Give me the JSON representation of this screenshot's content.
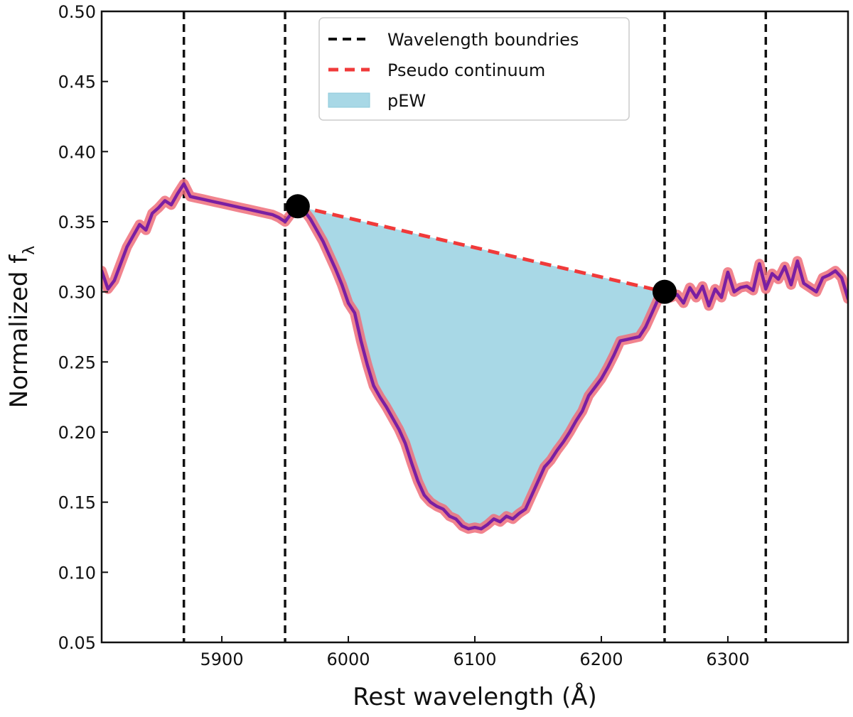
{
  "chart_data": {
    "type": "line",
    "xlabel": "Rest wavelength (Å)",
    "ylabel_main": "Normalized f",
    "ylabel_sub": "λ",
    "xlim": [
      5805,
      6395
    ],
    "ylim": [
      0.05,
      0.5
    ],
    "xticks": [
      5900,
      6000,
      6100,
      6200,
      6300
    ],
    "xtick_labels": [
      "5900",
      "6000",
      "6100",
      "6200",
      "6300"
    ],
    "yticks": [
      0.05,
      0.1,
      0.15,
      0.2,
      0.25,
      0.3,
      0.35,
      0.4,
      0.45,
      0.5
    ],
    "ytick_labels": [
      "0.05",
      "0.10",
      "0.15",
      "0.20",
      "0.25",
      "0.30",
      "0.35",
      "0.40",
      "0.45",
      "0.50"
    ],
    "grid": false,
    "legend_position": "top-center",
    "legend": [
      {
        "label": "Wavelength boundries",
        "style": "black-dashed-line"
      },
      {
        "label": "Pseudo continuum",
        "style": "red-dashed-line"
      },
      {
        "label": "pEW",
        "style": "filled-patch"
      }
    ],
    "colors": {
      "spectrum": "#7a1fa2",
      "spectrum_halo": "#ef6f7a",
      "boundary": "#111111",
      "continuum": "#f03a3a",
      "fill": "#a8d8e6",
      "endpoint": "#000000"
    },
    "boundaries_x": [
      5870,
      5950,
      6250,
      6330
    ],
    "continuum": {
      "start": {
        "x": 5960,
        "y": 0.361
      },
      "end": {
        "x": 6250,
        "y": 0.3
      }
    },
    "spectrum": {
      "x": [
        5805,
        5810,
        5815,
        5820,
        5825,
        5830,
        5835,
        5840,
        5845,
        5850,
        5855,
        5860,
        5865,
        5870,
        5875,
        5880,
        5885,
        5890,
        5895,
        5900,
        5905,
        5910,
        5915,
        5920,
        5925,
        5930,
        5935,
        5940,
        5945,
        5950,
        5955,
        5960,
        5965,
        5970,
        5975,
        5980,
        5985,
        5990,
        5995,
        6000,
        6005,
        6010,
        6015,
        6020,
        6025,
        6030,
        6035,
        6040,
        6045,
        6050,
        6055,
        6060,
        6065,
        6070,
        6075,
        6080,
        6085,
        6090,
        6095,
        6100,
        6105,
        6110,
        6115,
        6120,
        6125,
        6130,
        6135,
        6140,
        6145,
        6150,
        6155,
        6160,
        6165,
        6170,
        6175,
        6180,
        6185,
        6190,
        6195,
        6200,
        6205,
        6210,
        6215,
        6220,
        6225,
        6230,
        6235,
        6240,
        6245,
        6250,
        6255,
        6260,
        6265,
        6270,
        6275,
        6280,
        6285,
        6290,
        6295,
        6300,
        6305,
        6310,
        6315,
        6320,
        6325,
        6330,
        6335,
        6340,
        6345,
        6350,
        6355,
        6360,
        6365,
        6370,
        6375,
        6380,
        6385,
        6390,
        6395
      ],
      "y": [
        0.315,
        0.302,
        0.308,
        0.32,
        0.332,
        0.34,
        0.348,
        0.344,
        0.356,
        0.36,
        0.365,
        0.362,
        0.37,
        0.377,
        0.368,
        0.367,
        0.366,
        0.365,
        0.364,
        0.363,
        0.362,
        0.361,
        0.36,
        0.359,
        0.358,
        0.357,
        0.356,
        0.355,
        0.353,
        0.35,
        0.356,
        0.361,
        0.358,
        0.352,
        0.344,
        0.336,
        0.326,
        0.316,
        0.305,
        0.292,
        0.285,
        0.265,
        0.248,
        0.233,
        0.225,
        0.218,
        0.21,
        0.202,
        0.192,
        0.178,
        0.165,
        0.155,
        0.15,
        0.147,
        0.145,
        0.14,
        0.138,
        0.133,
        0.131,
        0.132,
        0.131,
        0.134,
        0.138,
        0.136,
        0.14,
        0.138,
        0.142,
        0.145,
        0.155,
        0.165,
        0.175,
        0.18,
        0.187,
        0.193,
        0.2,
        0.208,
        0.215,
        0.226,
        0.232,
        0.238,
        0.246,
        0.255,
        0.265,
        0.266,
        0.267,
        0.268,
        0.275,
        0.285,
        0.295,
        0.3,
        0.296,
        0.298,
        0.292,
        0.303,
        0.296,
        0.304,
        0.29,
        0.302,
        0.296,
        0.314,
        0.3,
        0.303,
        0.304,
        0.301,
        0.32,
        0.302,
        0.313,
        0.309,
        0.318,
        0.305,
        0.322,
        0.306,
        0.303,
        0.3,
        0.31,
        0.312,
        0.315,
        0.31,
        0.295
      ]
    },
    "pew_region": {
      "x_start": 5960,
      "x_end": 6250
    }
  }
}
